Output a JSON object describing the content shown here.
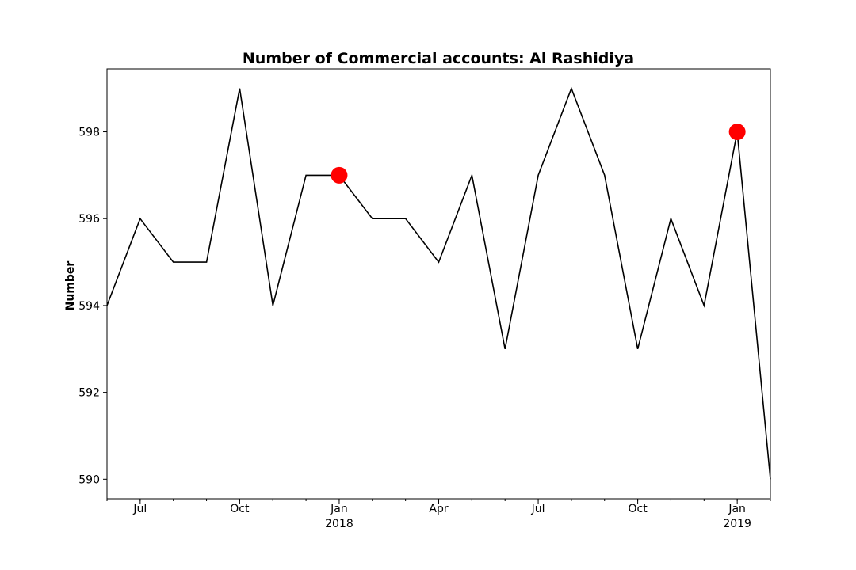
{
  "chart_data": {
    "type": "line",
    "title": "Number of Commercial accounts: Al Rashidiya",
    "xlabel": "",
    "ylabel": "Number",
    "x": [
      "2017-06",
      "2017-07",
      "2017-08",
      "2017-09",
      "2017-10",
      "2017-11",
      "2017-12",
      "2018-01",
      "2018-02",
      "2018-03",
      "2018-04",
      "2018-05",
      "2018-06",
      "2018-07",
      "2018-08",
      "2018-09",
      "2018-10",
      "2018-11",
      "2018-12",
      "2019-01",
      "2019-02"
    ],
    "series": [
      {
        "values": [
          594,
          596,
          595,
          595,
          599,
          594,
          597,
          597,
          596,
          596,
          595,
          597,
          593,
          597,
          599,
          597,
          593,
          596,
          594,
          598,
          590
        ]
      }
    ],
    "highlights": [
      {
        "x": "2018-01",
        "y": 597
      },
      {
        "x": "2019-01",
        "y": 598
      }
    ],
    "xlim": [
      "2017-06",
      "2019-02"
    ],
    "ylim": [
      589.55,
      599.45
    ],
    "yticks": [
      590,
      592,
      594,
      596,
      598
    ],
    "xticks_major": [
      {
        "x": "2017-07",
        "label": "Jul",
        "sublabel": ""
      },
      {
        "x": "2017-10",
        "label": "Oct",
        "sublabel": ""
      },
      {
        "x": "2018-01",
        "label": "Jan",
        "sublabel": "2018"
      },
      {
        "x": "2018-04",
        "label": "Apr",
        "sublabel": ""
      },
      {
        "x": "2018-07",
        "label": "Jul",
        "sublabel": ""
      },
      {
        "x": "2018-10",
        "label": "Oct",
        "sublabel": ""
      },
      {
        "x": "2019-01",
        "label": "Jan",
        "sublabel": "2019"
      }
    ],
    "grid": false,
    "legend": "none",
    "colors": {
      "line": "#000000",
      "highlight": "#ff0000"
    }
  }
}
